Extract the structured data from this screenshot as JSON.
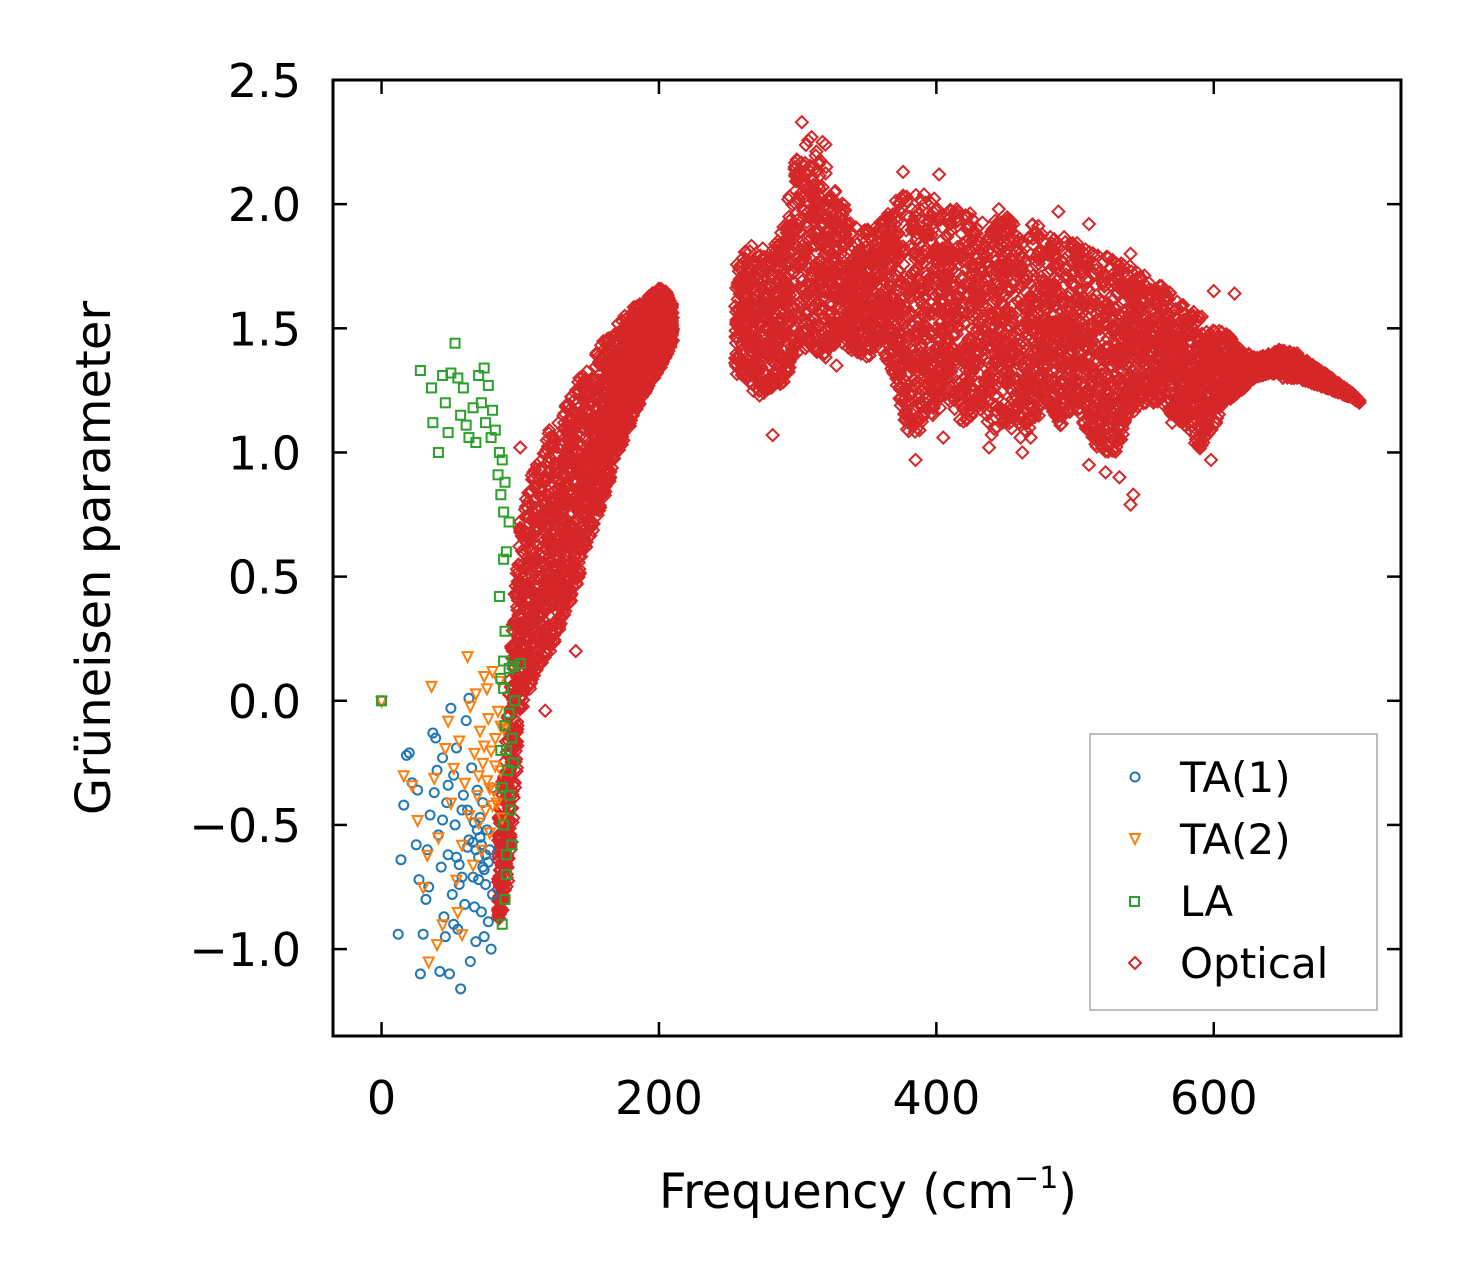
{
  "chart_data": {
    "type": "scatter",
    "title": "",
    "xlabel": "Frequency (cm",
    "xlabel_sup": "−1",
    "xlabel_tail": ")",
    "ylabel": "Grüneisen parameter",
    "xlim": [
      -35,
      735
    ],
    "ylim": [
      -1.35,
      2.5
    ],
    "xticks": [
      0,
      200,
      400,
      600
    ],
    "xtick_labels": [
      "0",
      "200",
      "400",
      "600"
    ],
    "yticks": [
      -1.0,
      -0.5,
      0.0,
      0.5,
      1.0,
      1.5,
      2.0,
      2.5
    ],
    "ytick_labels": [
      "−1.0",
      "−0.5",
      "0.0",
      "0.5",
      "1.0",
      "1.5",
      "2.0",
      "2.5"
    ],
    "grid": false,
    "legend_position": "lower-right",
    "series": [
      {
        "name": "TA(1)",
        "marker": "circle",
        "color": "#1f77b4",
        "points": [
          [
            0,
            0
          ],
          [
            18,
            -0.22
          ],
          [
            20,
            -0.21
          ],
          [
            22,
            -0.33
          ],
          [
            25,
            -0.58
          ],
          [
            27,
            -0.72
          ],
          [
            28,
            -1.1
          ],
          [
            30,
            -0.94
          ],
          [
            32,
            -0.8
          ],
          [
            34,
            -0.75
          ],
          [
            35,
            -0.46
          ],
          [
            37,
            -0.13
          ],
          [
            38,
            -0.37
          ],
          [
            40,
            -0.28
          ],
          [
            41,
            -0.54
          ],
          [
            42,
            -1.09
          ],
          [
            43,
            -0.67
          ],
          [
            44,
            -0.23
          ],
          [
            45,
            -0.87
          ],
          [
            46,
            -0.95
          ],
          [
            47,
            -0.41
          ],
          [
            48,
            -0.62
          ],
          [
            49,
            -1.1
          ],
          [
            50,
            -0.03
          ],
          [
            51,
            -0.78
          ],
          [
            52,
            -0.3
          ],
          [
            53,
            -0.5
          ],
          [
            54,
            -0.19
          ],
          [
            55,
            -0.92
          ],
          [
            56,
            -0.66
          ],
          [
            57,
            -1.16
          ],
          [
            58,
            -0.44
          ],
          [
            59,
            -0.38
          ],
          [
            60,
            -0.82
          ],
          [
            61,
            -0.08
          ],
          [
            62,
            -0.59
          ],
          [
            63,
            0.01
          ],
          [
            64,
            -1.05
          ],
          [
            65,
            -0.27
          ],
          [
            66,
            -0.71
          ],
          [
            67,
            -0.49
          ],
          [
            68,
            -0.97
          ],
          [
            69,
            -0.36
          ],
          [
            70,
            -0.63
          ],
          [
            71,
            -0.55
          ],
          [
            72,
            -0.85
          ],
          [
            73,
            -0.41
          ],
          [
            74,
            -0.68
          ],
          [
            75,
            -0.74
          ],
          [
            76,
            -0.52
          ],
          [
            77,
            -0.89
          ],
          [
            78,
            -0.6
          ],
          [
            79,
            -1.0
          ],
          [
            80,
            -0.35
          ],
          [
            12,
            -0.94
          ],
          [
            14,
            -0.64
          ],
          [
            16,
            -0.42
          ],
          [
            26,
            -0.36
          ],
          [
            33,
            -0.6
          ],
          [
            39,
            -0.15
          ],
          [
            52,
            -0.9
          ],
          [
            56,
            -0.74
          ],
          [
            63,
            -0.56
          ],
          [
            67,
            -0.83
          ],
          [
            71,
            -0.47
          ],
          [
            74,
            -0.95
          ],
          [
            77,
            -0.65
          ],
          [
            80,
            -0.78
          ],
          [
            68,
            -0.6
          ],
          [
            70,
            -0.72
          ],
          [
            72,
            -0.58
          ],
          [
            73,
            -0.67
          ],
          [
            75,
            -0.62
          ],
          [
            69,
            -0.52
          ],
          [
            66,
            -0.57
          ],
          [
            62,
            -0.44
          ],
          [
            58,
            -0.71
          ],
          [
            54,
            -0.63
          ],
          [
            48,
            -0.34
          ],
          [
            44,
            -0.48
          ]
        ]
      },
      {
        "name": "TA(2)",
        "marker": "triangle-down",
        "color": "#ff7f0e",
        "points": [
          [
            0,
            0
          ],
          [
            16,
            -0.3
          ],
          [
            22,
            -0.34
          ],
          [
            26,
            -0.48
          ],
          [
            30,
            -0.75
          ],
          [
            33,
            -0.62
          ],
          [
            36,
            0.06
          ],
          [
            38,
            -0.31
          ],
          [
            41,
            -0.55
          ],
          [
            44,
            -0.9
          ],
          [
            46,
            -0.19
          ],
          [
            48,
            -0.08
          ],
          [
            50,
            -0.41
          ],
          [
            52,
            -0.27
          ],
          [
            54,
            -0.72
          ],
          [
            56,
            -0.16
          ],
          [
            58,
            -0.58
          ],
          [
            60,
            -0.33
          ],
          [
            62,
            0.18
          ],
          [
            63,
            -0.46
          ],
          [
            64,
            -0.02
          ],
          [
            66,
            -0.66
          ],
          [
            67,
            -0.21
          ],
          [
            68,
            0.03
          ],
          [
            69,
            -0.38
          ],
          [
            70,
            -0.49
          ],
          [
            71,
            -0.12
          ],
          [
            72,
            -0.6
          ],
          [
            73,
            -0.25
          ],
          [
            74,
            0.1
          ],
          [
            75,
            -0.44
          ],
          [
            76,
            -0.32
          ],
          [
            77,
            -0.07
          ],
          [
            78,
            -0.53
          ],
          [
            79,
            -0.2
          ],
          [
            80,
            0.12
          ],
          [
            81,
            -0.36
          ],
          [
            82,
            -0.15
          ],
          [
            83,
            -0.41
          ],
          [
            84,
            -0.04
          ],
          [
            85,
            0.08
          ],
          [
            86,
            -0.28
          ],
          [
            87,
            -0.47
          ],
          [
            88,
            -0.11
          ],
          [
            70,
            -0.3
          ],
          [
            74,
            -0.18
          ],
          [
            78,
            -0.35
          ],
          [
            82,
            -0.26
          ],
          [
            86,
            -0.1
          ],
          [
            80,
            -0.42
          ],
          [
            34,
            -1.05
          ],
          [
            40,
            -0.98
          ],
          [
            55,
            -0.85
          ],
          [
            58,
            -0.94
          ],
          [
            76,
            0.05
          ]
        ]
      },
      {
        "name": "LA",
        "marker": "square",
        "color": "#2ca02c",
        "points": [
          [
            0,
            0
          ],
          [
            28,
            1.33
          ],
          [
            36,
            1.26
          ],
          [
            37,
            1.12
          ],
          [
            41,
            1.0
          ],
          [
            44,
            1.31
          ],
          [
            46,
            1.2
          ],
          [
            48,
            1.08
          ],
          [
            50,
            1.32
          ],
          [
            53,
            1.44
          ],
          [
            55,
            1.3
          ],
          [
            57,
            1.15
          ],
          [
            59,
            1.26
          ],
          [
            61,
            1.11
          ],
          [
            63,
            1.06
          ],
          [
            66,
            1.18
          ],
          [
            68,
            1.04
          ],
          [
            70,
            1.31
          ],
          [
            72,
            1.2
          ],
          [
            74,
            1.34
          ],
          [
            75,
            1.12
          ],
          [
            77,
            1.27
          ],
          [
            79,
            1.06
          ],
          [
            80,
            1.17
          ],
          [
            82,
            1.09
          ],
          [
            84,
            0.91
          ],
          [
            85,
            1.0
          ],
          [
            86,
            0.83
          ],
          [
            87,
            0.97
          ],
          [
            88,
            0.76
          ],
          [
            89,
            0.88
          ],
          [
            85,
            0.42
          ],
          [
            88,
            0.57
          ],
          [
            89,
            0.28
          ],
          [
            90,
            0.6
          ],
          [
            92,
            0.72
          ],
          [
            88,
            0.16
          ],
          [
            86,
            0.09
          ],
          [
            92,
            0.13
          ],
          [
            95,
            0.14
          ],
          [
            100,
            0.15
          ],
          [
            86,
            -0.2
          ],
          [
            87,
            -0.35
          ],
          [
            88,
            -0.5
          ],
          [
            89,
            -0.1
          ],
          [
            90,
            -0.62
          ],
          [
            91,
            -0.28
          ],
          [
            92,
            -0.05
          ],
          [
            93,
            -0.44
          ],
          [
            94,
            -0.15
          ],
          [
            95,
            -0.25
          ],
          [
            96,
            0.0
          ],
          [
            89,
            -0.8
          ],
          [
            90,
            -0.7
          ],
          [
            87,
            -0.9
          ],
          [
            88,
            0.05
          ],
          [
            92,
            -0.38
          ],
          [
            94,
            -0.58
          ],
          [
            90,
            -0.2
          ]
        ]
      },
      {
        "name": "Optical",
        "marker": "diamond",
        "color": "#d62728",
        "branches": [
          {
            "x": [
              84,
              90,
              95,
              100,
              110,
              120,
              130,
              140,
              150,
              160,
              170,
              180,
              190,
              200,
              205,
              210
            ],
            "y_upper": [
              -0.5,
              -0.1,
              0.35,
              0.78,
              0.95,
              1.08,
              1.18,
              1.28,
              1.36,
              1.45,
              1.52,
              1.58,
              1.62,
              1.66,
              1.66,
              1.6
            ],
            "y_lower": [
              -0.9,
              -0.8,
              -0.5,
              -0.05,
              0.08,
              0.18,
              0.3,
              0.45,
              0.65,
              0.8,
              0.98,
              1.12,
              1.24,
              1.33,
              1.38,
              1.45
            ]
          },
          {
            "x": [
              255,
              262,
              270,
              280,
              290,
              300,
              310,
              320,
              330,
              340,
              350,
              360,
              370,
              380,
              390,
              400,
              410,
              420,
              430,
              440,
              450,
              460,
              470,
              480,
              490,
              500,
              510,
              520,
              530,
              540,
              550,
              560,
              570,
              580,
              590,
              600,
              610,
              620,
              630,
              640,
              650,
              660,
              670,
              680,
              690,
              700,
              705
            ],
            "y_upper": [
              1.75,
              1.82,
              1.85,
              1.8,
              1.92,
              2.25,
              2.26,
              2.22,
              2.05,
              1.92,
              1.9,
              1.95,
              2.02,
              2.05,
              2.05,
              2.02,
              2.0,
              1.98,
              1.95,
              1.93,
              1.95,
              1.92,
              1.92,
              1.9,
              1.88,
              1.85,
              1.82,
              1.8,
              1.77,
              1.75,
              1.72,
              1.68,
              1.65,
              1.6,
              1.56,
              1.52,
              1.48,
              1.42,
              1.38,
              1.4,
              1.42,
              1.4,
              1.36,
              1.32,
              1.28,
              1.24,
              1.21
            ],
            "y_lower": [
              1.3,
              1.3,
              1.22,
              1.25,
              1.28,
              1.4,
              1.42,
              1.38,
              1.45,
              1.4,
              1.38,
              1.42,
              1.3,
              1.05,
              1.1,
              1.15,
              1.2,
              1.1,
              1.18,
              1.05,
              1.12,
              1.05,
              1.1,
              1.2,
              1.1,
              1.2,
              1.05,
              1.0,
              1.0,
              1.15,
              1.2,
              1.2,
              1.15,
              1.1,
              1.0,
              1.1,
              1.2,
              1.25,
              1.3,
              1.32,
              1.3,
              1.3,
              1.28,
              1.26,
              1.24,
              1.22,
              1.2
            ]
          }
        ],
        "outliers": [
          [
            303,
            2.33
          ],
          [
            310,
            2.27
          ],
          [
            318,
            2.25
          ],
          [
            320,
            2.24
          ],
          [
            376,
            2.13
          ],
          [
            402,
            2.12
          ],
          [
            445,
            1.98
          ],
          [
            488,
            1.97
          ],
          [
            510,
            1.92
          ],
          [
            540,
            1.8
          ],
          [
            600,
            1.65
          ],
          [
            615,
            1.64
          ],
          [
            385,
            0.97
          ],
          [
            462,
            1.0
          ],
          [
            510,
            0.95
          ],
          [
            522,
            0.92
          ],
          [
            532,
            0.9
          ],
          [
            542,
            0.83
          ],
          [
            540,
            0.79
          ],
          [
            282,
            1.07
          ],
          [
            328,
            1.35
          ],
          [
            405,
            1.06
          ],
          [
            438,
            1.02
          ],
          [
            598,
            0.97
          ],
          [
            140,
            0.2
          ],
          [
            118,
            -0.04
          ],
          [
            100,
            1.02
          ],
          [
            146,
            1.1
          ],
          [
            176,
            1.1
          ],
          [
            265,
            1.6
          ],
          [
            290,
            1.48
          ],
          [
            336,
            1.55
          ],
          [
            416,
            1.28
          ],
          [
            468,
            1.06
          ],
          [
            486,
            1.15
          ],
          [
            570,
            1.12
          ],
          [
            590,
            1.16
          ]
        ]
      }
    ]
  }
}
